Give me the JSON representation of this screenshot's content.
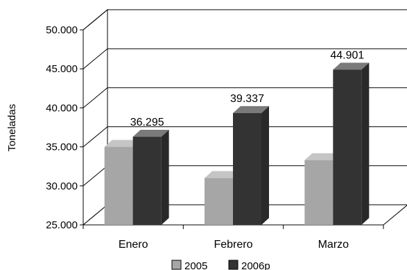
{
  "chart_data": {
    "type": "bar",
    "title": "",
    "xlabel": "",
    "ylabel": "Toneladas",
    "categories": [
      "Enero",
      "Febrero",
      "Marzo"
    ],
    "series": [
      {
        "name": "2005",
        "values": [
          35000,
          31000,
          33300
        ],
        "color": "#a6a6a6"
      },
      {
        "name": "2006p",
        "values": [
          36295,
          39337,
          44901
        ],
        "color": "#333333"
      }
    ],
    "data_labels": [
      "36.295",
      "39.337",
      "44.901"
    ],
    "ylim": [
      25000,
      50000
    ],
    "yticks": [
      25000,
      30000,
      35000,
      40000,
      45000,
      50000
    ],
    "ytick_labels": [
      "25.000",
      "30.000",
      "35.000",
      "40.000",
      "45.000",
      "50.000"
    ],
    "grid": true,
    "legend": "bottom",
    "style": "3d"
  }
}
